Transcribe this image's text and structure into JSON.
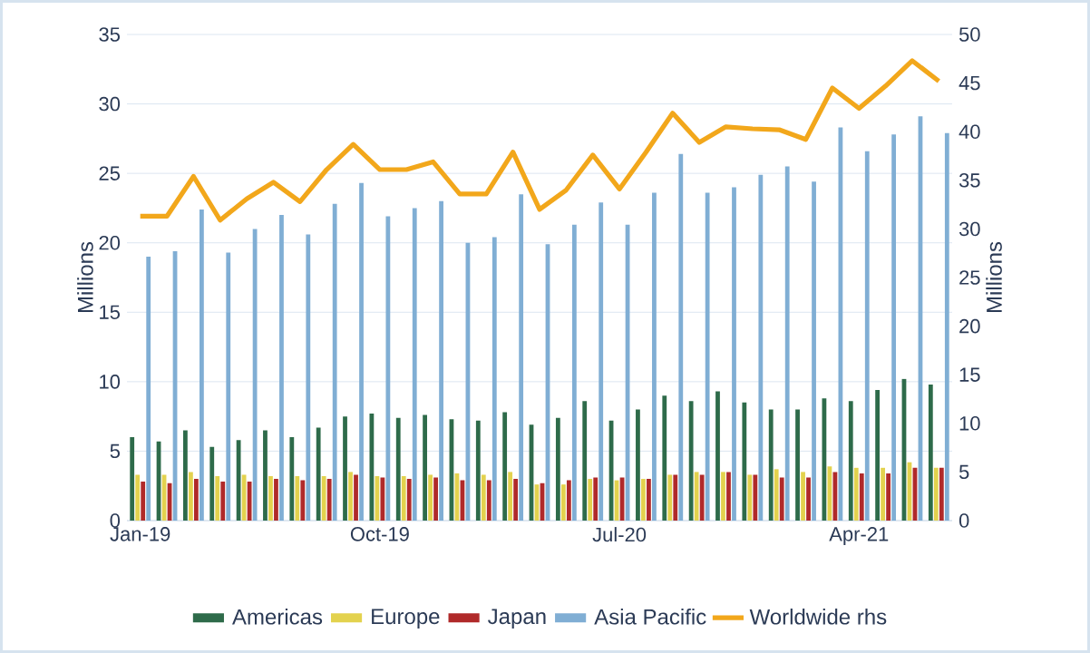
{
  "chart_data": {
    "type": "bar",
    "categories": [
      "Jan-19",
      null,
      null,
      null,
      null,
      null,
      null,
      null,
      null,
      "Oct-19",
      null,
      null,
      null,
      null,
      null,
      null,
      null,
      null,
      "Jul-20",
      null,
      null,
      null,
      null,
      null,
      null,
      null,
      null,
      "Apr-21",
      null,
      null,
      null
    ],
    "series": [
      {
        "name": "Americas",
        "color": "#2e6b4a",
        "values": [
          6.0,
          5.7,
          6.5,
          5.3,
          5.8,
          6.5,
          6.0,
          6.7,
          7.5,
          7.7,
          7.4,
          7.6,
          7.3,
          7.2,
          7.8,
          6.9,
          7.4,
          8.6,
          7.2,
          8.0,
          9.0,
          8.6,
          9.3,
          8.5,
          8.0,
          8.0,
          8.8,
          8.6,
          9.4,
          10.2,
          9.8
        ]
      },
      {
        "name": "Europe",
        "color": "#e3d24e",
        "values": [
          3.3,
          3.3,
          3.5,
          3.2,
          3.3,
          3.2,
          3.2,
          3.2,
          3.5,
          3.2,
          3.2,
          3.3,
          3.4,
          3.3,
          3.5,
          2.6,
          2.6,
          3.0,
          2.9,
          3.0,
          3.3,
          3.5,
          3.5,
          3.3,
          3.7,
          3.5,
          3.9,
          3.8,
          3.8,
          4.2,
          3.8
        ]
      },
      {
        "name": "Japan",
        "color": "#b02a2a",
        "values": [
          2.8,
          2.7,
          3.0,
          2.8,
          2.8,
          3.0,
          2.9,
          3.0,
          3.3,
          3.1,
          3.0,
          3.1,
          2.9,
          2.9,
          3.0,
          2.7,
          2.9,
          3.1,
          3.1,
          3.0,
          3.3,
          3.3,
          3.5,
          3.3,
          3.1,
          3.1,
          3.5,
          3.4,
          3.4,
          3.8,
          3.8
        ]
      },
      {
        "name": "Asia Pacific",
        "color": "#80aed4",
        "values": [
          19.0,
          19.4,
          22.4,
          19.3,
          21.0,
          22.0,
          20.6,
          22.8,
          24.3,
          21.9,
          22.5,
          23.0,
          20.0,
          20.4,
          23.5,
          19.9,
          21.3,
          22.9,
          21.3,
          23.6,
          26.4,
          23.6,
          24.0,
          24.9,
          25.5,
          24.4,
          28.3,
          26.6,
          27.8,
          29.1,
          27.9
        ]
      },
      {
        "name": "Worldwide rhs",
        "color": "#f2a71b",
        "type": "line",
        "axis": "y2",
        "values": [
          31.3,
          31.3,
          35.4,
          30.9,
          33.1,
          34.8,
          32.8,
          36.1,
          38.7,
          36.1,
          36.1,
          36.9,
          33.6,
          33.6,
          37.9,
          32.0,
          34.0,
          37.6,
          34.1,
          37.9,
          41.9,
          38.9,
          40.5,
          40.3,
          40.2,
          39.2,
          44.5,
          42.4,
          44.7,
          47.3,
          45.2
        ]
      }
    ],
    "ylabel": "Millions",
    "y2label": "Millions",
    "ylim": [
      0,
      35
    ],
    "yticks": [
      0,
      5,
      10,
      15,
      20,
      25,
      30,
      35
    ],
    "y2lim": [
      0,
      50
    ],
    "y2ticks": [
      0,
      5,
      10,
      15,
      20,
      25,
      30,
      35,
      40,
      45,
      50
    ],
    "grid": "y",
    "legend": "bottom"
  }
}
